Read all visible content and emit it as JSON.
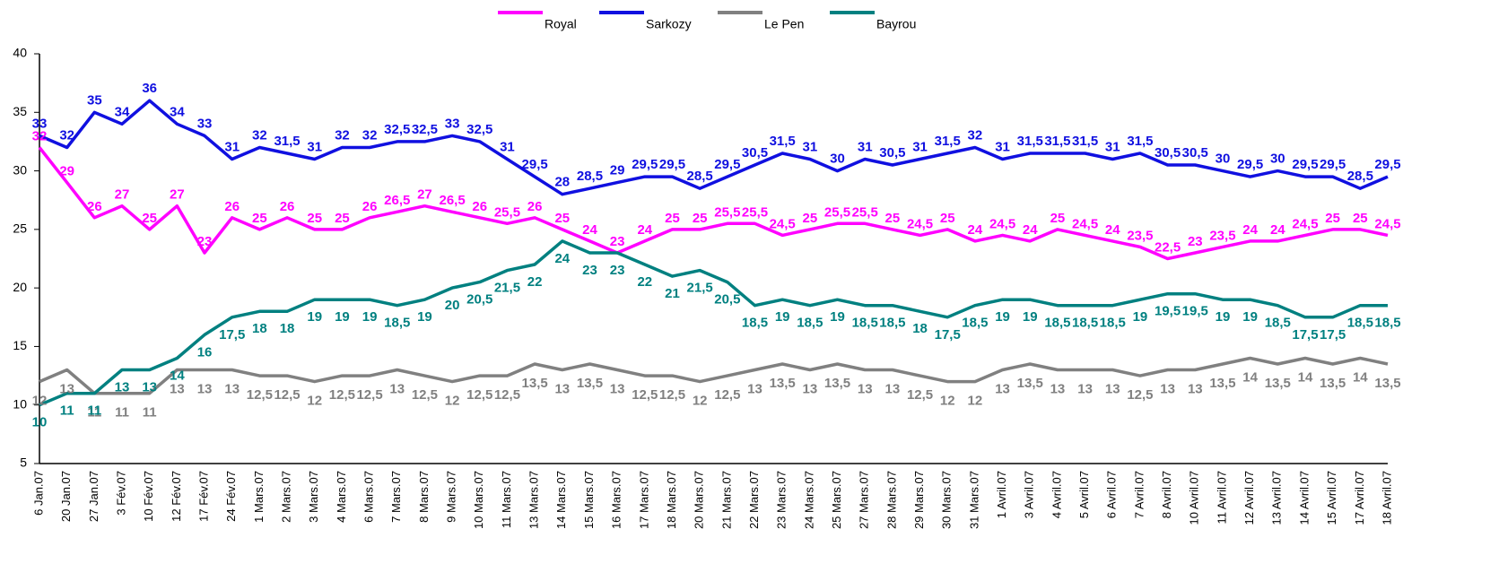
{
  "chart_data": {
    "type": "line",
    "categories": [
      "6 Jan.07",
      "20 Jan.07",
      "27 Jan.07",
      "3 Fév.07",
      "10 Fév.07",
      "12 Fév.07",
      "17 Fév.07",
      "24 Fév.07",
      "1 Mars.07",
      "2 Mars.07",
      "3 Mars.07",
      "4 Mars.07",
      "6 Mars.07",
      "7 Mars.07",
      "8 Mars.07",
      "9 Mars.07",
      "10 Mars.07",
      "11 Mars.07",
      "13 Mars.07",
      "14 Mars.07",
      "15 Mars.07",
      "16 Mars.07",
      "17 Mars.07",
      "18 Mars.07",
      "20 Mars.07",
      "21 Mars.07",
      "22 Mars.07",
      "23 Mars.07",
      "24 Mars.07",
      "25 Mars.07",
      "27 Mars.07",
      "28 Mars.07",
      "29 Mars.07",
      "30 Mars.07",
      "31 Mars.07",
      "1 Avril.07",
      "3 Avril.07",
      "4 Avril.07",
      "5 Avril.07",
      "6 Avril.07",
      "7 Avril.07",
      "8 Avril.07",
      "10 Avril.07",
      "11 Avril.07",
      "12 Avril.07",
      "13 Avril.07",
      "14 Avril.07",
      "15 Avril.07",
      "17 Avril.07",
      "18 Avril.07"
    ],
    "series": [
      {
        "name": "Royal",
        "color": "#ff00ff",
        "values": [
          32,
          29,
          26,
          27,
          25,
          27,
          23,
          26,
          25,
          26,
          25,
          25,
          26,
          26.5,
          27,
          26.5,
          26,
          25.5,
          26,
          25,
          24,
          23,
          24,
          25,
          25,
          25.5,
          25.5,
          24.5,
          25,
          25.5,
          25.5,
          25,
          24.5,
          25,
          24,
          24.5,
          24,
          25,
          24.5,
          24,
          23.5,
          22.5,
          23,
          23.5,
          24,
          24,
          24.5,
          25,
          25,
          24.5
        ],
        "value_labels": [
          "32",
          "29",
          "26",
          "27",
          "25",
          "27",
          "23",
          "26",
          "25",
          "26",
          "25",
          "25",
          "26",
          "26,5",
          "27",
          "26,5",
          "26",
          "25,5",
          "26",
          "25",
          "24",
          "23",
          "24",
          "25",
          "25",
          "25,5",
          "25,5",
          "24,5",
          "25",
          "25,5",
          "25,5",
          "25",
          "24,5",
          "25",
          "24",
          "24,5",
          "24",
          "25",
          "24,5",
          "24",
          "23,5",
          "22,5",
          "23",
          "23,5",
          "24",
          "24",
          "24,5",
          "25",
          "25",
          "24,5"
        ]
      },
      {
        "name": "Sarkozy",
        "color": "#1010e0",
        "values": [
          33,
          32,
          35,
          34,
          36,
          34,
          33,
          31,
          32,
          31.5,
          31,
          32,
          32,
          32.5,
          32.5,
          33,
          32.5,
          31,
          29.5,
          28,
          28.5,
          29,
          29.5,
          29.5,
          28.5,
          29.5,
          30.5,
          31.5,
          31,
          30,
          31,
          30.5,
          31,
          31.5,
          32,
          31,
          31.5,
          31.5,
          31.5,
          31,
          31.5,
          30.5,
          30.5,
          30,
          29.5,
          30,
          29.5,
          29.5,
          28.5,
          29.5
        ],
        "value_labels": [
          "33",
          "32",
          "35",
          "34",
          "36",
          "34",
          "33",
          "31",
          "32",
          "31,5",
          "31",
          "32",
          "32",
          "32,5",
          "32,5",
          "33",
          "32,5",
          "31",
          "29,5",
          "28",
          "28,5",
          "29",
          "29,5",
          "29,5",
          "28,5",
          "29,5",
          "30,5",
          "31,5",
          "31",
          "30",
          "31",
          "30,5",
          "31",
          "31,5",
          "32",
          "31",
          "31,5",
          "31,5",
          "31,5",
          "31",
          "31,5",
          "30,5",
          "30,5",
          "30",
          "29,5",
          "30",
          "29,5",
          "29,5",
          "28,5",
          "29,5"
        ]
      },
      {
        "name": "Le Pen",
        "color": "#808080",
        "values": [
          12,
          13,
          11,
          11,
          11,
          13,
          13,
          13,
          12.5,
          12.5,
          12,
          12.5,
          12.5,
          13,
          12.5,
          12,
          12.5,
          12.5,
          13.5,
          13,
          13.5,
          13,
          12.5,
          12.5,
          12,
          12.5,
          13,
          13.5,
          13,
          13.5,
          13,
          13,
          12.5,
          12,
          12,
          13,
          13.5,
          13,
          13,
          13,
          12.5,
          13,
          13,
          13.5,
          14,
          13.5,
          14,
          13.5,
          14,
          13.5
        ],
        "value_labels": [
          "12",
          "13",
          "11",
          "11",
          "11",
          "13",
          "13",
          "13",
          "12,5",
          "12,5",
          "12",
          "12,5",
          "12,5",
          "13",
          "12,5",
          "12",
          "12,5",
          "12,5",
          "13,5",
          "13",
          "13,5",
          "13",
          "12,5",
          "12,5",
          "12",
          "12,5",
          "13",
          "13,5",
          "13",
          "13,5",
          "13",
          "13",
          "12,5",
          "12",
          "12",
          "13",
          "13,5",
          "13",
          "13",
          "13",
          "12,5",
          "13",
          "13",
          "13,5",
          "14",
          "13,5",
          "14",
          "13,5",
          "14",
          "13,5"
        ]
      },
      {
        "name": "Bayrou",
        "color": "#008080",
        "values": [
          10,
          11,
          11,
          13,
          13,
          14,
          16,
          17.5,
          18,
          18,
          19,
          19,
          19,
          18.5,
          19,
          20,
          20.5,
          21.5,
          22,
          24,
          23,
          23,
          22,
          21,
          21.5,
          20.5,
          18.5,
          19,
          18.5,
          19,
          18.5,
          18.5,
          18,
          17.5,
          18.5,
          19,
          19,
          18.5,
          18.5,
          18.5,
          19,
          19.5,
          19.5,
          19,
          19,
          18.5,
          17.5,
          17.5,
          18.5,
          18.5
        ],
        "value_labels": [
          "10",
          "11",
          "11",
          "13",
          "13",
          "14",
          "16",
          "17,5",
          "18",
          "18",
          "19",
          "19",
          "19",
          "18,5",
          "19",
          "20",
          "20,5",
          "21,5",
          "22",
          "24",
          "23",
          "23",
          "22",
          "21",
          "21,5",
          "20,5",
          "18,5",
          "19",
          "18,5",
          "19",
          "18,5",
          "18,5",
          "18",
          "17,5",
          "18,5",
          "19",
          "19",
          "18,5",
          "18,5",
          "18,5",
          "19",
          "19,5",
          "19,5",
          "19",
          "19",
          "18,5",
          "17,5",
          "17,5",
          "18,5",
          "18,5"
        ]
      }
    ],
    "ylim": [
      5,
      40
    ],
    "yticks": [
      5,
      10,
      15,
      20,
      25,
      30,
      35,
      40
    ],
    "grid": false,
    "legend": "top"
  }
}
